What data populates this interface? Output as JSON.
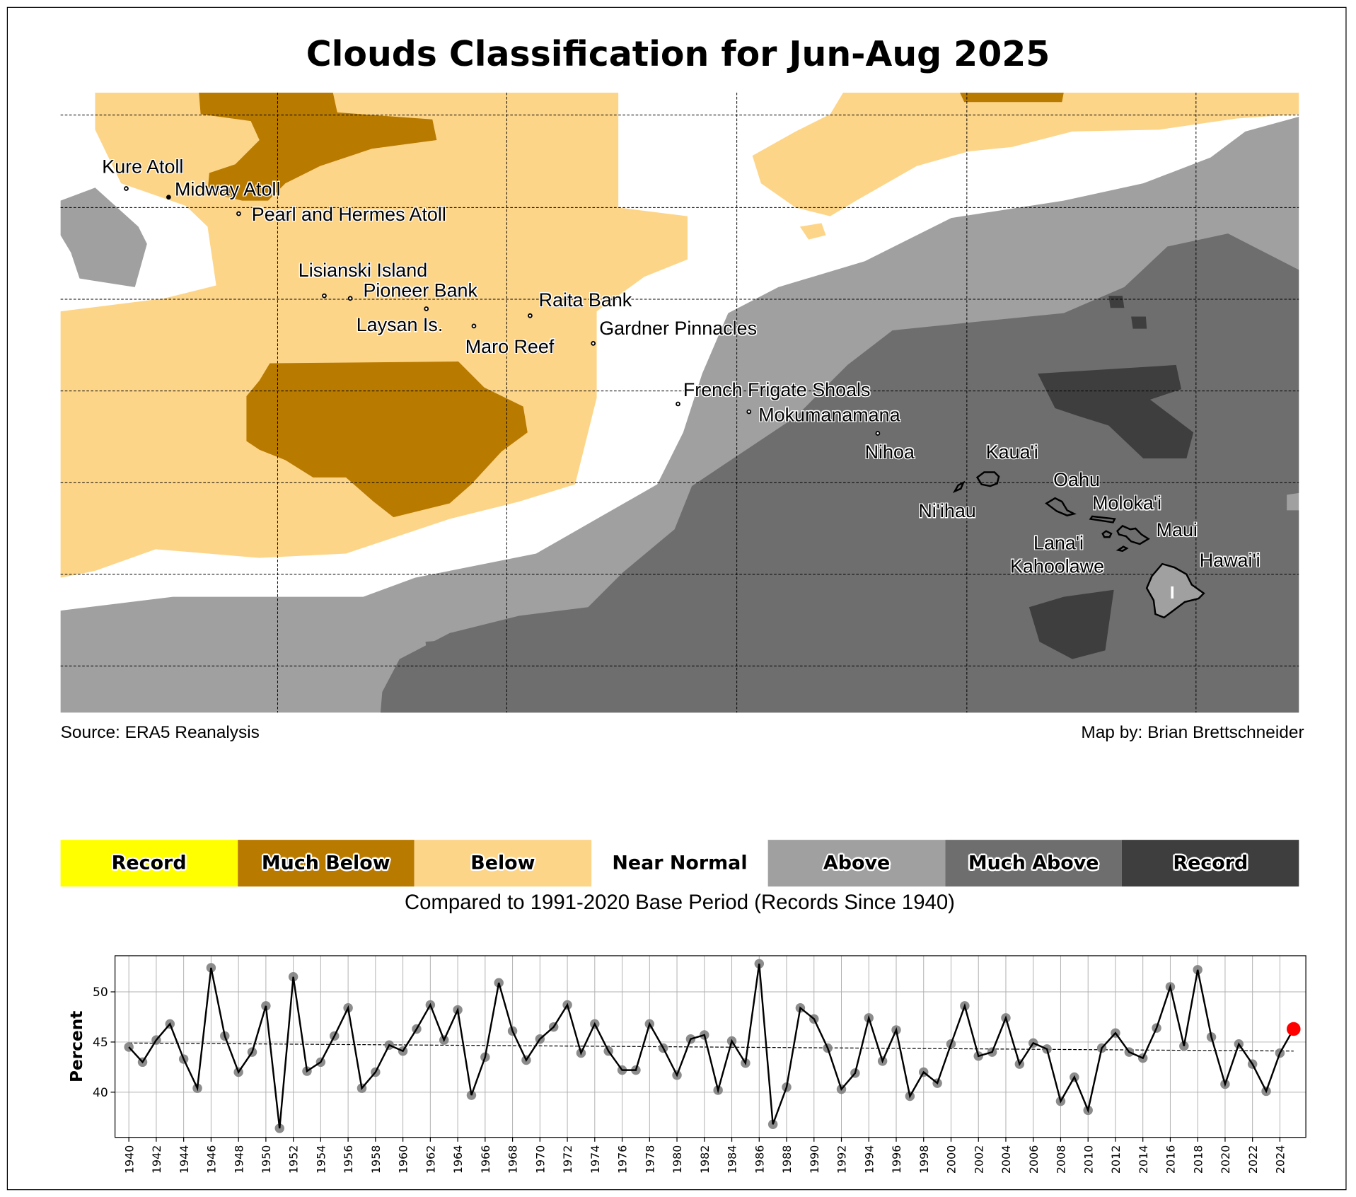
{
  "title": "Clouds Classification for Jun-Aug 2025",
  "map": {
    "sites": [
      {
        "name": "Kure Atoll"
      },
      {
        "name": "Midway Atoll"
      },
      {
        "name": "Pearl and Hermes Atoll"
      },
      {
        "name": "Lisianski Island"
      },
      {
        "name": "Pioneer Bank"
      },
      {
        "name": "Laysan Is."
      },
      {
        "name": "Raita Bank"
      },
      {
        "name": "Gardner Pinnacles"
      },
      {
        "name": "Maro Reef"
      },
      {
        "name": "French Frigate Shoals"
      },
      {
        "name": "Mokumanamana"
      },
      {
        "name": "Nihoa"
      },
      {
        "name": "Kaua'i"
      },
      {
        "name": "Ni'ihau"
      },
      {
        "name": "Oahu"
      },
      {
        "name": "Moloka'i"
      },
      {
        "name": "Maui"
      },
      {
        "name": "Lana'i"
      },
      {
        "name": "Kahoolawe"
      },
      {
        "name": "Hawai'i"
      }
    ],
    "source": "Source: ERA5 Reanalysis",
    "credit": "Map by: Brian Brettschneider"
  },
  "legend": {
    "items": [
      {
        "label": "Record",
        "color": "#ffff00"
      },
      {
        "label": "Much Below",
        "color": "#b97a00"
      },
      {
        "label": "Below",
        "color": "#fdd589"
      },
      {
        "label": "Near Normal",
        "color": "#ffffff"
      },
      {
        "label": "Above",
        "color": "#a0a0a0"
      },
      {
        "label": "Much Above",
        "color": "#6e6e6e"
      },
      {
        "label": "Record",
        "color": "#3e3e3e"
      }
    ],
    "caption": "Compared to 1991-2020 Base Period   (Records Since 1940)"
  },
  "chart_data": {
    "type": "line",
    "title": "",
    "xlabel": "",
    "ylabel": "Percent",
    "ylim": [
      35.5,
      53.6
    ],
    "yticks": [
      40,
      45,
      50
    ],
    "grid": true,
    "x": [
      1940,
      1941,
      1942,
      1943,
      1944,
      1945,
      1946,
      1947,
      1948,
      1949,
      1950,
      1951,
      1952,
      1953,
      1954,
      1955,
      1956,
      1957,
      1958,
      1959,
      1960,
      1961,
      1962,
      1963,
      1964,
      1965,
      1966,
      1967,
      1968,
      1969,
      1970,
      1971,
      1972,
      1973,
      1974,
      1975,
      1976,
      1977,
      1978,
      1979,
      1980,
      1981,
      1982,
      1983,
      1984,
      1985,
      1986,
      1987,
      1988,
      1989,
      1990,
      1991,
      1992,
      1993,
      1994,
      1995,
      1996,
      1997,
      1998,
      1999,
      2000,
      2001,
      2002,
      2003,
      2004,
      2005,
      2006,
      2007,
      2008,
      2009,
      2010,
      2011,
      2012,
      2013,
      2014,
      2015,
      2016,
      2017,
      2018,
      2019,
      2020,
      2021,
      2022,
      2023,
      2024,
      2025
    ],
    "values": [
      44.5,
      43.0,
      45.2,
      46.8,
      43.3,
      40.4,
      52.4,
      45.6,
      42.0,
      44.0,
      48.6,
      36.4,
      51.5,
      42.1,
      43.0,
      45.6,
      48.4,
      40.4,
      42.0,
      44.7,
      44.1,
      46.3,
      48.7,
      45.2,
      48.2,
      39.7,
      43.5,
      50.9,
      46.1,
      43.2,
      45.3,
      46.5,
      48.7,
      43.9,
      46.8,
      44.1,
      42.2,
      42.2,
      46.8,
      44.4,
      41.7,
      45.3,
      45.7,
      40.2,
      45.1,
      42.9,
      52.8,
      36.8,
      40.5,
      48.4,
      47.3,
      44.4,
      40.3,
      41.9,
      47.4,
      43.1,
      46.2,
      39.6,
      42.0,
      40.9,
      44.8,
      48.6,
      43.6,
      44.0,
      47.4,
      42.8,
      44.9,
      44.3,
      39.1,
      41.5,
      38.2,
      44.4,
      45.9,
      44.0,
      43.4,
      46.4,
      50.5,
      44.6,
      52.2,
      45.5,
      40.8,
      44.8,
      42.8,
      40.1,
      43.9,
      46.3
    ],
    "trend": {
      "start": [
        1940,
        44.9
      ],
      "end": [
        2025,
        44.1
      ]
    },
    "highlight": {
      "year": 2025,
      "color": "#ff0000"
    },
    "marker_color": "#808080"
  }
}
